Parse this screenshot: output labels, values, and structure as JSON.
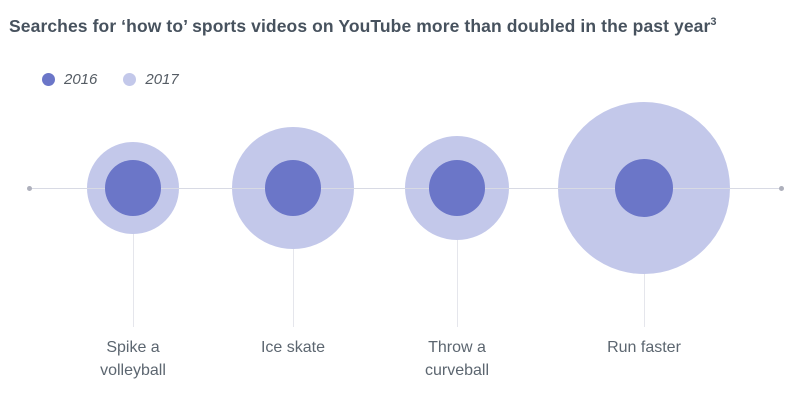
{
  "title": {
    "text": "Searches for ‘how to’ sports videos on YouTube more than doubled in the past year",
    "footnote_marker": "3"
  },
  "legend": {
    "items": [
      {
        "label": "2016",
        "color": "#6B76C8"
      },
      {
        "label": "2017",
        "color": "#C3C8EA"
      }
    ]
  },
  "chart_data": {
    "type": "bubble",
    "title": "Searches for ‘how to’ sports videos on YouTube more than doubled in the past year",
    "categories": [
      "Spike a volleyball",
      "Ice skate",
      "Throw a curveball",
      "Run faster"
    ],
    "series": [
      {
        "name": "2016",
        "color": "#6B76C8",
        "radius_px": [
          28,
          28,
          28,
          29
        ]
      },
      {
        "name": "2017",
        "color": "#C3C8EA",
        "radius_px": [
          46,
          61,
          52,
          86
        ]
      }
    ],
    "approx_area_growth_ratio_2017_vs_2016": [
      2.7,
      4.7,
      3.4,
      8.8
    ],
    "legend_position": "top-left",
    "axis": {
      "style": "horizontal baseline through bubble centers",
      "grid": false,
      "tick_labels": "category names below bubbles"
    }
  },
  "colors": {
    "background": "#FFFFFF",
    "title_text": "#47525E",
    "legend_text": "#555C64",
    "label_text": "#5C6670",
    "axis_line": "#D8DAE4",
    "axis_endpoint": "#AEB0BC",
    "connector": "#E5E6EC",
    "bubble_2016": "#6B76C8",
    "bubble_2017": "#C3C8EA"
  }
}
